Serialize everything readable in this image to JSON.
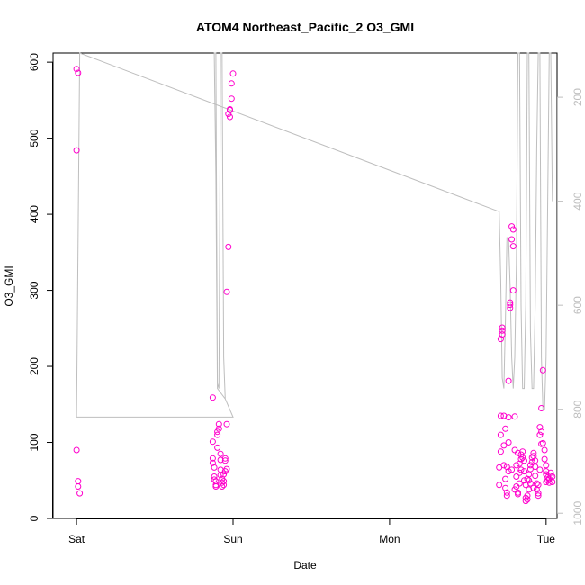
{
  "chart_data": {
    "type": "scatter",
    "title": "ATOM4 Northeast_Pacific_2 O3_GMI",
    "xlabel": "Date",
    "ylabel": "O3_GMI",
    "x_ticks": [
      {
        "label": "Sat",
        "value": 0
      },
      {
        "label": "Sun",
        "value": 1
      },
      {
        "label": "Mon",
        "value": 2
      },
      {
        "label": "Tue",
        "value": 3
      }
    ],
    "xlim": [
      -0.15,
      3.07
    ],
    "ylim": [
      0,
      612
    ],
    "y_ticks": [
      0,
      100,
      200,
      300,
      400,
      500,
      600
    ],
    "secondary_axis": {
      "side": "right",
      "ticks": [
        200,
        400,
        600,
        800,
        1000
      ],
      "reversed": true,
      "range": [
        115,
        1010
      ],
      "color": "#bebebe"
    },
    "grid": false,
    "series": [
      {
        "color": "#ff00cc",
        "marker": "open-circle",
        "points": [
          [
            0.0,
            591
          ],
          [
            0.01,
            586
          ],
          [
            0.0,
            484
          ],
          [
            0.0,
            90
          ],
          [
            0.01,
            49
          ],
          [
            0.01,
            42
          ],
          [
            0.02,
            33
          ],
          [
            0.87,
            159
          ],
          [
            0.87,
            101
          ],
          [
            0.87,
            79
          ],
          [
            0.87,
            73
          ],
          [
            0.88,
            67
          ],
          [
            0.88,
            55
          ],
          [
            0.88,
            51
          ],
          [
            0.89,
            49
          ],
          [
            0.89,
            44
          ],
          [
            0.89,
            42
          ],
          [
            0.9,
            93
          ],
          [
            0.9,
            110
          ],
          [
            0.9,
            114
          ],
          [
            0.91,
            118
          ],
          [
            0.91,
            124
          ],
          [
            0.92,
            85
          ],
          [
            0.92,
            77
          ],
          [
            0.92,
            64
          ],
          [
            0.92,
            57
          ],
          [
            0.93,
            52
          ],
          [
            0.93,
            47
          ],
          [
            0.93,
            42
          ],
          [
            0.94,
            44
          ],
          [
            0.94,
            49
          ],
          [
            0.94,
            58
          ],
          [
            0.95,
            62
          ],
          [
            0.95,
            76
          ],
          [
            0.95,
            79
          ],
          [
            0.96,
            65
          ],
          [
            0.96,
            124
          ],
          [
            0.96,
            298
          ],
          [
            0.97,
            357
          ],
          [
            0.97,
            532
          ],
          [
            0.98,
            537
          ],
          [
            0.98,
            528
          ],
          [
            0.98,
            538
          ],
          [
            0.99,
            552
          ],
          [
            0.99,
            572
          ],
          [
            1.0,
            585
          ],
          [
            2.7,
            44
          ],
          [
            2.7,
            67
          ],
          [
            2.71,
            88
          ],
          [
            2.71,
            110
          ],
          [
            2.71,
            135
          ],
          [
            2.71,
            236
          ],
          [
            2.72,
            242
          ],
          [
            2.72,
            247
          ],
          [
            2.72,
            251
          ],
          [
            2.73,
            135
          ],
          [
            2.73,
            96
          ],
          [
            2.73,
            70
          ],
          [
            2.74,
            52
          ],
          [
            2.74,
            40
          ],
          [
            2.75,
            34
          ],
          [
            2.75,
            30
          ],
          [
            2.75,
            68
          ],
          [
            2.76,
            100
          ],
          [
            2.76,
            133
          ],
          [
            2.76,
            181
          ],
          [
            2.77,
            277
          ],
          [
            2.77,
            281
          ],
          [
            2.77,
            284
          ],
          [
            2.78,
            367
          ],
          [
            2.78,
            384
          ],
          [
            2.79,
            380
          ],
          [
            2.79,
            358
          ],
          [
            2.79,
            300
          ],
          [
            2.8,
            134
          ],
          [
            2.8,
            90
          ],
          [
            2.81,
            70
          ],
          [
            2.81,
            55
          ],
          [
            2.81,
            42
          ],
          [
            2.82,
            34
          ],
          [
            2.82,
            32
          ],
          [
            2.83,
            46
          ],
          [
            2.83,
            60
          ],
          [
            2.83,
            72
          ],
          [
            2.84,
            78
          ],
          [
            2.84,
            84
          ],
          [
            2.85,
            88
          ],
          [
            2.85,
            80
          ],
          [
            2.86,
            62
          ],
          [
            2.86,
            50
          ],
          [
            2.87,
            44
          ],
          [
            2.87,
            27
          ],
          [
            2.87,
            23
          ],
          [
            2.88,
            25
          ],
          [
            2.88,
            30
          ],
          [
            2.89,
            38
          ],
          [
            2.89,
            50
          ],
          [
            2.89,
            58
          ],
          [
            2.9,
            65
          ],
          [
            2.9,
            70
          ],
          [
            2.91,
            74
          ],
          [
            2.91,
            80
          ],
          [
            2.92,
            86
          ],
          [
            2.92,
            82
          ],
          [
            2.93,
            76
          ],
          [
            2.93,
            68
          ],
          [
            2.93,
            56
          ],
          [
            2.94,
            46
          ],
          [
            2.94,
            38
          ],
          [
            2.95,
            33
          ],
          [
            2.95,
            30
          ],
          [
            2.95,
            44
          ],
          [
            2.96,
            110
          ],
          [
            2.96,
            120
          ],
          [
            2.97,
            114
          ],
          [
            2.97,
            98
          ],
          [
            2.97,
            145
          ],
          [
            2.98,
            195
          ],
          [
            2.98,
            99
          ],
          [
            2.99,
            90
          ],
          [
            2.99,
            78
          ],
          [
            3.0,
            70
          ],
          [
            3.0,
            62
          ],
          [
            3.0,
            58
          ],
          [
            3.01,
            54
          ],
          [
            3.01,
            50
          ],
          [
            3.02,
            47
          ],
          [
            3.02,
            52
          ],
          [
            3.03,
            56
          ],
          [
            3.03,
            60
          ],
          [
            3.04,
            55
          ],
          [
            3.04,
            48
          ],
          [
            2.78,
            64
          ],
          [
            2.8,
            38
          ],
          [
            2.84,
            64
          ],
          [
            2.88,
            52
          ],
          [
            2.92,
            40
          ],
          [
            2.96,
            64
          ],
          [
            3.0,
            48
          ],
          [
            2.74,
            118
          ],
          [
            2.76,
            62
          ],
          [
            2.82,
            86
          ],
          [
            2.86,
            76
          ],
          [
            2.9,
            46
          ]
        ]
      },
      {
        "color": "#bebebe",
        "axis": "secondary",
        "line": true,
        "points": [
          [
            0.0,
            815
          ],
          [
            0.02,
            115
          ],
          [
            2.7,
            420
          ],
          [
            2.71,
            550
          ],
          [
            2.72,
            740
          ],
          [
            2.73,
            760
          ],
          [
            2.74,
            630
          ],
          [
            2.75,
            470
          ],
          [
            2.76,
            470
          ],
          [
            2.77,
            560
          ],
          [
            2.78,
            700
          ],
          [
            2.79,
            760
          ],
          [
            2.8,
            700
          ],
          [
            2.81,
            520
          ],
          [
            2.82,
            115
          ],
          [
            2.83,
            115
          ],
          [
            2.84,
            600
          ],
          [
            2.85,
            760
          ],
          [
            2.86,
            760
          ],
          [
            2.87,
            600
          ],
          [
            2.88,
            115
          ],
          [
            2.89,
            115
          ],
          [
            2.9,
            650
          ],
          [
            2.91,
            760
          ],
          [
            2.92,
            760
          ],
          [
            2.93,
            600
          ],
          [
            2.94,
            300
          ],
          [
            2.95,
            115
          ],
          [
            2.96,
            115
          ],
          [
            2.97,
            700
          ],
          [
            2.98,
            800
          ],
          [
            2.99,
            800
          ],
          [
            3.0,
            700
          ],
          [
            3.01,
            400
          ],
          [
            3.02,
            115
          ],
          [
            3.03,
            115
          ],
          [
            3.04,
            400
          ]
        ]
      },
      {
        "color": "#bebebe",
        "axis": "secondary",
        "line": true,
        "points": [
          [
            0.0,
            815
          ],
          [
            1.0,
            815
          ],
          [
            0.95,
            780
          ],
          [
            0.9,
            760
          ],
          [
            0.89,
            350
          ],
          [
            0.88,
            115
          ],
          [
            0.89,
            115
          ],
          [
            0.9,
            750
          ],
          [
            0.91,
            760
          ],
          [
            0.92,
            115
          ],
          [
            0.93,
            115
          ],
          [
            0.94,
            700
          ],
          [
            0.95,
            780
          ]
        ]
      }
    ]
  }
}
